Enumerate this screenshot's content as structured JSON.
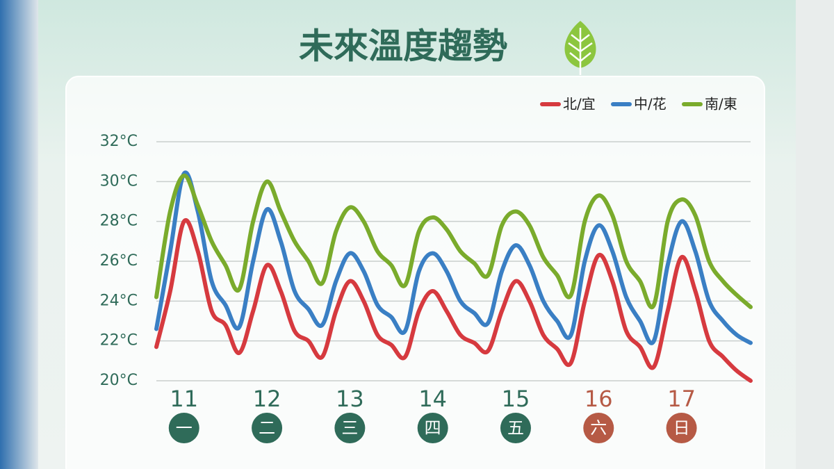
{
  "chart_data": {
    "type": "line",
    "title": "未來溫度趨勢",
    "categories": [
      null,
      null,
      "11",
      null,
      null,
      null,
      null,
      null,
      "12",
      null,
      null,
      null,
      null,
      null,
      "13",
      null,
      null,
      null,
      null,
      null,
      "14",
      null,
      null,
      null,
      null,
      null,
      "15",
      null,
      null,
      null,
      null,
      null,
      "16",
      null,
      null,
      null,
      null,
      null,
      "17",
      null,
      null,
      null,
      null,
      null
    ],
    "weekdays": [
      null,
      null,
      "一",
      null,
      null,
      null,
      null,
      null,
      "二",
      null,
      null,
      null,
      null,
      null,
      "三",
      null,
      null,
      null,
      null,
      null,
      "四",
      null,
      null,
      null,
      null,
      null,
      "五",
      null,
      null,
      null,
      null,
      null,
      "六",
      null,
      null,
      null,
      null,
      null,
      "日",
      null,
      null,
      null,
      null,
      null
    ],
    "category_colors": [
      null,
      null,
      "#2f6b59",
      null,
      null,
      null,
      null,
      null,
      "#2f6b59",
      null,
      null,
      null,
      null,
      null,
      "#2f6b59",
      null,
      null,
      null,
      null,
      null,
      "#2f6b59",
      null,
      null,
      null,
      null,
      null,
      "#2f6b59",
      null,
      null,
      null,
      null,
      null,
      "#b65a45",
      null,
      null,
      null,
      null,
      null,
      "#b65a45",
      null,
      null,
      null,
      null,
      null
    ],
    "series": [
      {
        "name": "北/宜",
        "color": "#d63a3f",
        "values": [
          21.7,
          24.5,
          28.0,
          26.5,
          23.5,
          22.8,
          21.4,
          23.5,
          25.8,
          24.5,
          22.5,
          22.0,
          21.2,
          23.5,
          25.0,
          24.0,
          22.3,
          21.8,
          21.2,
          23.5,
          24.5,
          23.5,
          22.3,
          21.9,
          21.5,
          23.5,
          25.0,
          24.0,
          22.3,
          21.6,
          20.9,
          24.0,
          26.3,
          25.0,
          22.5,
          21.7,
          20.7,
          23.5,
          26.2,
          24.5,
          22.0,
          21.2,
          20.5,
          20.0
        ]
      },
      {
        "name": "中/花",
        "color": "#3a7fc4",
        "values": [
          22.6,
          26.5,
          30.4,
          28.5,
          25.0,
          23.8,
          22.7,
          26.0,
          28.6,
          27.0,
          24.5,
          23.6,
          22.8,
          25.0,
          26.4,
          25.5,
          23.8,
          23.2,
          22.5,
          25.5,
          26.4,
          25.5,
          24.0,
          23.4,
          22.9,
          25.5,
          26.8,
          25.8,
          24.0,
          23.0,
          22.3,
          26.0,
          27.8,
          26.5,
          24.2,
          23.0,
          22.0,
          25.8,
          28.0,
          26.5,
          24.0,
          23.0,
          22.3,
          21.9
        ]
      },
      {
        "name": "南/東",
        "color": "#7aab2c",
        "values": [
          24.2,
          28.5,
          30.3,
          28.8,
          27.0,
          25.8,
          24.6,
          28.0,
          30.0,
          28.5,
          27.0,
          26.0,
          24.9,
          27.5,
          28.7,
          28.0,
          26.5,
          25.8,
          24.8,
          27.5,
          28.2,
          27.6,
          26.5,
          25.9,
          25.3,
          27.8,
          28.5,
          27.8,
          26.2,
          25.3,
          24.3,
          28.0,
          29.3,
          28.3,
          26.0,
          25.0,
          23.8,
          28.0,
          29.1,
          28.3,
          26.0,
          25.0,
          24.3,
          23.7
        ]
      }
    ],
    "ylim": [
      20,
      32
    ],
    "yticks": [
      {
        "value": 20,
        "label": "20°C"
      },
      {
        "value": 22,
        "label": "22°C"
      },
      {
        "value": 24,
        "label": "24°C"
      },
      {
        "value": 26,
        "label": "26°C"
      },
      {
        "value": 28,
        "label": "28°C"
      },
      {
        "value": 30,
        "label": "30°C"
      },
      {
        "value": 32,
        "label": "32°C"
      }
    ],
    "grid": true,
    "legend": "top-right"
  }
}
